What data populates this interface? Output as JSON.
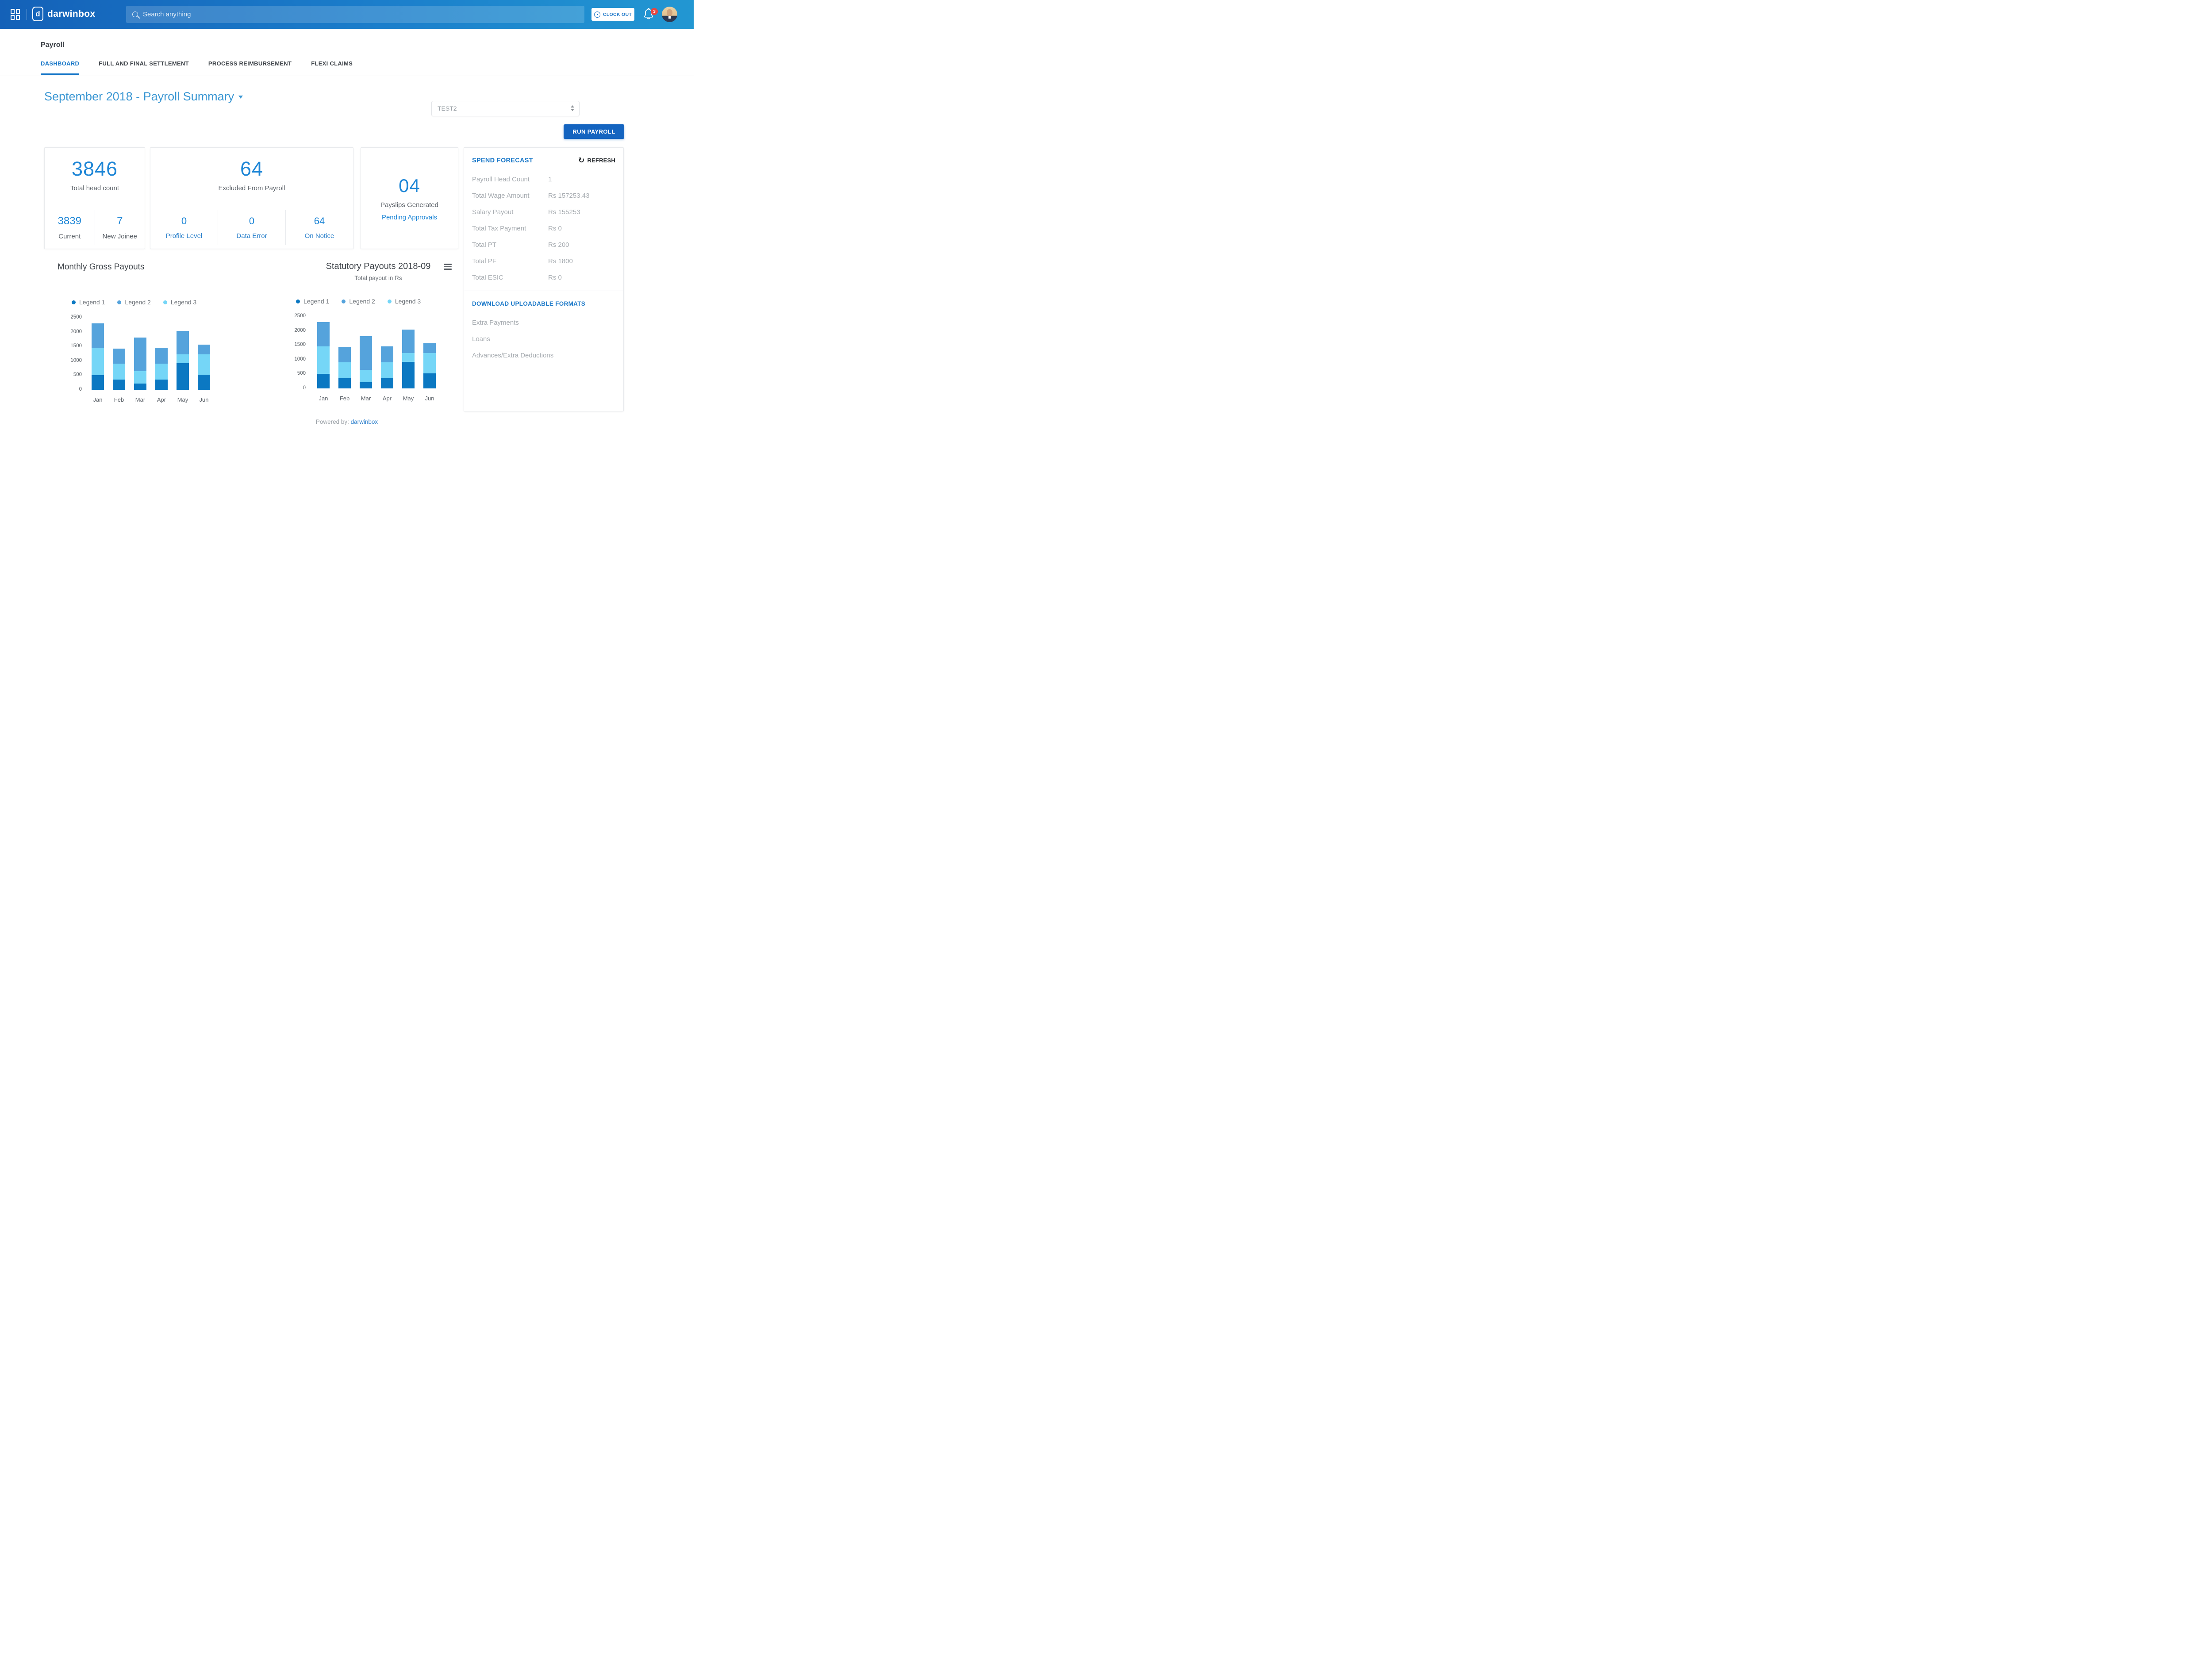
{
  "header": {
    "logo_text": "darwinbox",
    "search_placeholder": "Search anything",
    "clock_out_label": "CLOCK OUT",
    "notification_count": "3"
  },
  "page": {
    "title": "Payroll",
    "tabs": [
      {
        "label": "DASHBOARD",
        "active": true
      },
      {
        "label": "FULL AND FINAL SETTLEMENT",
        "active": false
      },
      {
        "label": "PROCESS REIMBURSEMENT",
        "active": false
      },
      {
        "label": "FLEXI CLAIMS",
        "active": false
      }
    ],
    "summary_heading": "September 2018 - Payroll Summary",
    "entity_select_value": "TEST2",
    "run_payroll_label": "RUN PAYROLL"
  },
  "cards": {
    "head_count": {
      "value": "3846",
      "label": "Total head count",
      "stats": [
        {
          "value": "3839",
          "label": "Current"
        },
        {
          "value": "7",
          "label": "New Joinee"
        }
      ]
    },
    "excluded": {
      "value": "64",
      "label": "Excluded From Payroll",
      "stats": [
        {
          "value": "0",
          "label": "Profile Level"
        },
        {
          "value": "0",
          "label": "Data Error"
        },
        {
          "value": "64",
          "label": "On Notice"
        }
      ]
    },
    "payslips": {
      "value": "04",
      "label": "Payslips Generated",
      "link": "Pending Approvals"
    }
  },
  "spend_forecast": {
    "title": "SPEND FORECAST",
    "refresh_label": "REFRESH",
    "rows": [
      {
        "label": "Payroll Head Count",
        "value": "1"
      },
      {
        "label": "Total Wage Amount",
        "value": "Rs 157253.43"
      },
      {
        "label": "Salary Payout",
        "value": "Rs 155253"
      },
      {
        "label": "Total Tax Payment",
        "value": "Rs 0"
      },
      {
        "label": "Total PT",
        "value": "Rs 200"
      },
      {
        "label": "Total PF",
        "value": "Rs 1800"
      },
      {
        "label": "Total ESIC",
        "value": "Rs 0"
      }
    ],
    "download_title": "DOWNLOAD UPLOADABLE FORMATS",
    "download_items": [
      "Extra Payments",
      "Loans",
      "Advances/Extra Deductions"
    ]
  },
  "chart_data": [
    {
      "type": "bar",
      "stacked": true,
      "title": "Monthly Gross Payouts",
      "subtitle": null,
      "menu_icon": false,
      "categories": [
        "Jan",
        "Feb",
        "Mar",
        "Apr",
        "May",
        "Jun"
      ],
      "series": [
        {
          "name": "Legend 1",
          "color": "#0b78c2",
          "values": [
            500,
            350,
            220,
            350,
            920,
            520
          ]
        },
        {
          "name": "Legend 2",
          "color": "#55a3dc",
          "values": [
            850,
            510,
            1160,
            550,
            810,
            350
          ]
        },
        {
          "name": "Legend 3",
          "color": "#75d6f7",
          "values": [
            950,
            560,
            430,
            560,
            310,
            700
          ]
        }
      ],
      "stack_order": [
        "Legend 1",
        "Legend 3",
        "Legend 2"
      ],
      "totals": [
        2300,
        1420,
        1810,
        1460,
        2040,
        1570
      ],
      "ylim": [
        0,
        2500
      ],
      "yticks": [
        0,
        500,
        1000,
        1500,
        2000,
        2500
      ],
      "grid": false,
      "legend_position": "top"
    },
    {
      "type": "bar",
      "stacked": true,
      "title": "Statutory Payouts 2018-09",
      "subtitle": "Total payout in Rs",
      "menu_icon": true,
      "categories": [
        "Jan",
        "Feb",
        "Mar",
        "Apr",
        "May",
        "Jun"
      ],
      "series": [
        {
          "name": "Legend 1",
          "color": "#0b78c2",
          "values": [
            500,
            350,
            220,
            350,
            920,
            520
          ]
        },
        {
          "name": "Legend 2",
          "color": "#55a3dc",
          "values": [
            850,
            510,
            1160,
            550,
            810,
            350
          ]
        },
        {
          "name": "Legend 3",
          "color": "#75d6f7",
          "values": [
            950,
            560,
            430,
            560,
            310,
            700
          ]
        }
      ],
      "stack_order": [
        "Legend 1",
        "Legend 3",
        "Legend 2"
      ],
      "totals": [
        2300,
        1420,
        1810,
        1460,
        2040,
        1570
      ],
      "ylim": [
        0,
        2500
      ],
      "yticks": [
        0,
        500,
        1000,
        1500,
        2000,
        2500
      ],
      "grid": false,
      "legend_position": "top"
    }
  ],
  "footer": {
    "powered_by": "Powered by:",
    "brand": "darwinbox"
  },
  "colors": {
    "topbar_gradient_start": "#1461b8",
    "topbar_gradient_end": "#2297d2",
    "accent_blue": "#1a78c8",
    "heading_blue": "#3b97d3",
    "big_number_blue": "#1e86d6",
    "run_button_blue": "#1464c0",
    "badge_red": "#e8463f",
    "muted_gray": "#a7acb1",
    "bar_dark_blue": "#0b78c2",
    "bar_medium_blue": "#55a3dc",
    "bar_light_cyan": "#75d6f7"
  }
}
